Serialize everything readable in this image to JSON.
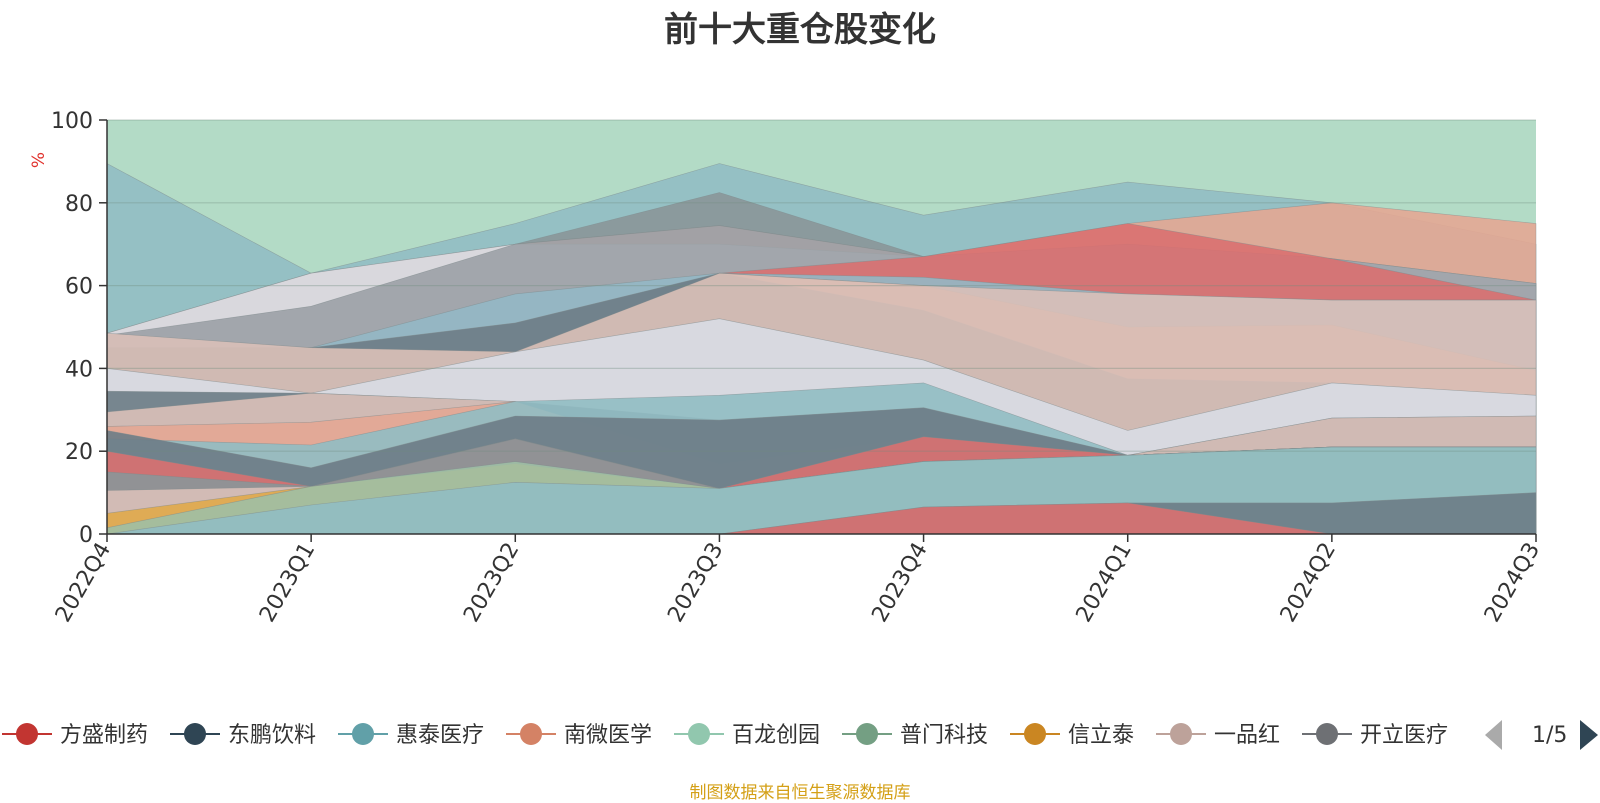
{
  "chart_data": {
    "type": "area",
    "title": "前十大重仓股变化",
    "ylabel": "%",
    "ylim": [
      0,
      100
    ],
    "yticks": [
      0,
      20,
      40,
      60,
      80,
      100
    ],
    "categories": [
      "2022Q4",
      "2023Q1",
      "2023Q2",
      "2023Q3",
      "2023Q4",
      "2024Q1",
      "2024Q2",
      "2024Q3"
    ],
    "grid": true,
    "background_fill": "#b3dbc6",
    "bands": [
      {
        "color": "#91bcc3",
        "upper": [
          89.5,
          63,
          75,
          89.5,
          77,
          85,
          80,
          70
        ]
      },
      {
        "color": "#8a9699",
        "upper": [
          48.5,
          55,
          70,
          82.5,
          67,
          70,
          66.5,
          60.5
        ]
      },
      {
        "color": "#e3a794",
        "upper": [
          48.5,
          63,
          70,
          74.5,
          67,
          75,
          80,
          75
        ]
      },
      {
        "color": "#d8dde4",
        "upper": [
          48.5,
          63,
          70,
          70,
          67,
          70,
          66.5,
          60.5
        ]
      },
      {
        "color": "#9ba1a6",
        "upper": [
          48,
          55,
          70,
          74.5,
          67,
          70,
          66.5,
          60.5
        ]
      },
      {
        "color": "#d97070",
        "upper": [
          45,
          38.5,
          44,
          63,
          67,
          75,
          66.5,
          56.5
        ]
      },
      {
        "color": "#94b8c5",
        "upper": [
          45,
          45,
          58,
          63,
          62,
          58,
          56.5,
          56.5
        ]
      },
      {
        "color": "#e2a68d",
        "upper": [
          45,
          45,
          44,
          63,
          60,
          50,
          50.5,
          39.5
        ]
      },
      {
        "color": "#6d7c86",
        "upper": [
          45,
          45,
          51,
          63,
          54,
          37.5,
          36.5,
          33.5
        ]
      },
      {
        "color": "#d9c0b8",
        "upper": [
          48.5,
          45,
          44,
          63,
          60,
          58,
          56.5,
          56.5
        ]
      },
      {
        "color": "#d8dde4",
        "upper": [
          40,
          34,
          44,
          52,
          42,
          25,
          36.5,
          33.5
        ]
      },
      {
        "color": "#6d7c86",
        "upper": [
          34.5,
          34,
          32,
          27.5,
          30.5,
          19,
          28,
          28.5
        ]
      },
      {
        "color": "#d9c0b8",
        "upper": [
          29.5,
          34,
          32,
          17,
          23.5,
          19,
          28,
          28.5
        ]
      },
      {
        "color": "#e3a794",
        "upper": [
          26,
          27,
          32,
          17,
          23.5,
          19,
          21,
          21
        ]
      },
      {
        "color": "#91bcc3",
        "upper": [
          23,
          21.5,
          32,
          33.5,
          36.5,
          19,
          21,
          21
        ]
      },
      {
        "color": "#6d7c86",
        "upper": [
          25,
          16,
          28.5,
          27.5,
          30.5,
          19,
          21,
          21
        ]
      },
      {
        "color": "#d97070",
        "upper": [
          20,
          11.5,
          23,
          11,
          23.5,
          19,
          21,
          21
        ]
      },
      {
        "color": "#8a9699",
        "upper": [
          15,
          11.5,
          23,
          11,
          17.5,
          19,
          21,
          21
        ]
      },
      {
        "color": "#d9c0b8",
        "upper": [
          10.5,
          11.5,
          17,
          11,
          17.5,
          19,
          21,
          21
        ]
      },
      {
        "color": "#e0aa4a",
        "upper": [
          5,
          11.5,
          17,
          11,
          17.5,
          19,
          21,
          21
        ]
      },
      {
        "color": "#9fbfa5",
        "upper": [
          1.5,
          11.5,
          17.5,
          11,
          17.5,
          19,
          21,
          21
        ]
      },
      {
        "color": "#91bcc3",
        "upper": [
          0,
          7,
          12.5,
          11,
          17.5,
          19,
          21,
          21
        ]
      },
      {
        "color": "#6d7c86",
        "upper": [
          0,
          0,
          0,
          0,
          6.5,
          7.5,
          7.5,
          10
        ]
      },
      {
        "color": "#d97070",
        "upper": [
          0,
          0,
          0,
          0,
          6.5,
          7.5,
          0,
          0
        ]
      }
    ],
    "legend": {
      "placement": "bottom",
      "page_indicator": "1/5",
      "items": [
        {
          "name": "方盛制药",
          "color": "#c23531"
        },
        {
          "name": "东鹏饮料",
          "color": "#2f4554"
        },
        {
          "name": "惠泰医疗",
          "color": "#61a0a8"
        },
        {
          "name": "南微医学",
          "color": "#d48265"
        },
        {
          "name": "百龙创园",
          "color": "#91c7ae"
        },
        {
          "name": "普门科技",
          "color": "#749f83"
        },
        {
          "name": "信立泰",
          "color": "#ca8622"
        },
        {
          "name": "一品红",
          "color": "#bda29a"
        },
        {
          "name": "开立医疗",
          "color": "#6e7074"
        }
      ]
    },
    "source_note": "制图数据来自恒生聚源数据库"
  }
}
